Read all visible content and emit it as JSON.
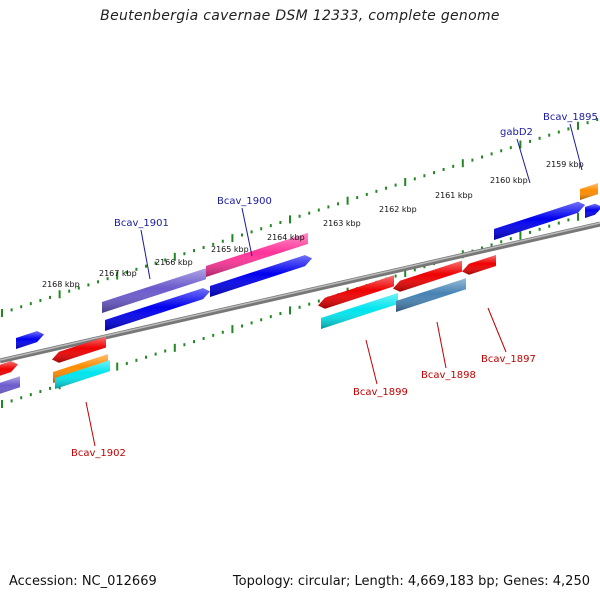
{
  "title": "Beutenbergia cavernae DSM 12333, complete genome",
  "footer": {
    "accession": "Accession: NC_012669",
    "topology": "Topology: circular; Length: 4,669,183 bp; Genes: 4,250"
  },
  "colors": {
    "backbone": "#888888",
    "ruler": "#228822",
    "top_label": "#1a1aa0",
    "bottom_label": "#c00000",
    "blue": "#0000ee",
    "purple": "#6a5acd",
    "magenta": "#ff3399",
    "red": "#ee0000",
    "cyan": "#00e5ee",
    "steelblue": "#4682b4",
    "orange": "#ff8c00"
  },
  "kbp_ticks": [
    "2159 kbp",
    "2160 kbp",
    "2161 kbp",
    "2162 kbp",
    "2163 kbp",
    "2164 kbp",
    "2165 kbp",
    "2166 kbp",
    "2167 kbp",
    "2168 kbp"
  ],
  "gene_labels": {
    "top": [
      "Bcav_1895",
      "gabD2",
      "Bcav_1900",
      "Bcav_1901"
    ],
    "bottom": [
      "Bcav_1897",
      "Bcav_1898",
      "Bcav_1899",
      "Bcav_1902"
    ]
  }
}
